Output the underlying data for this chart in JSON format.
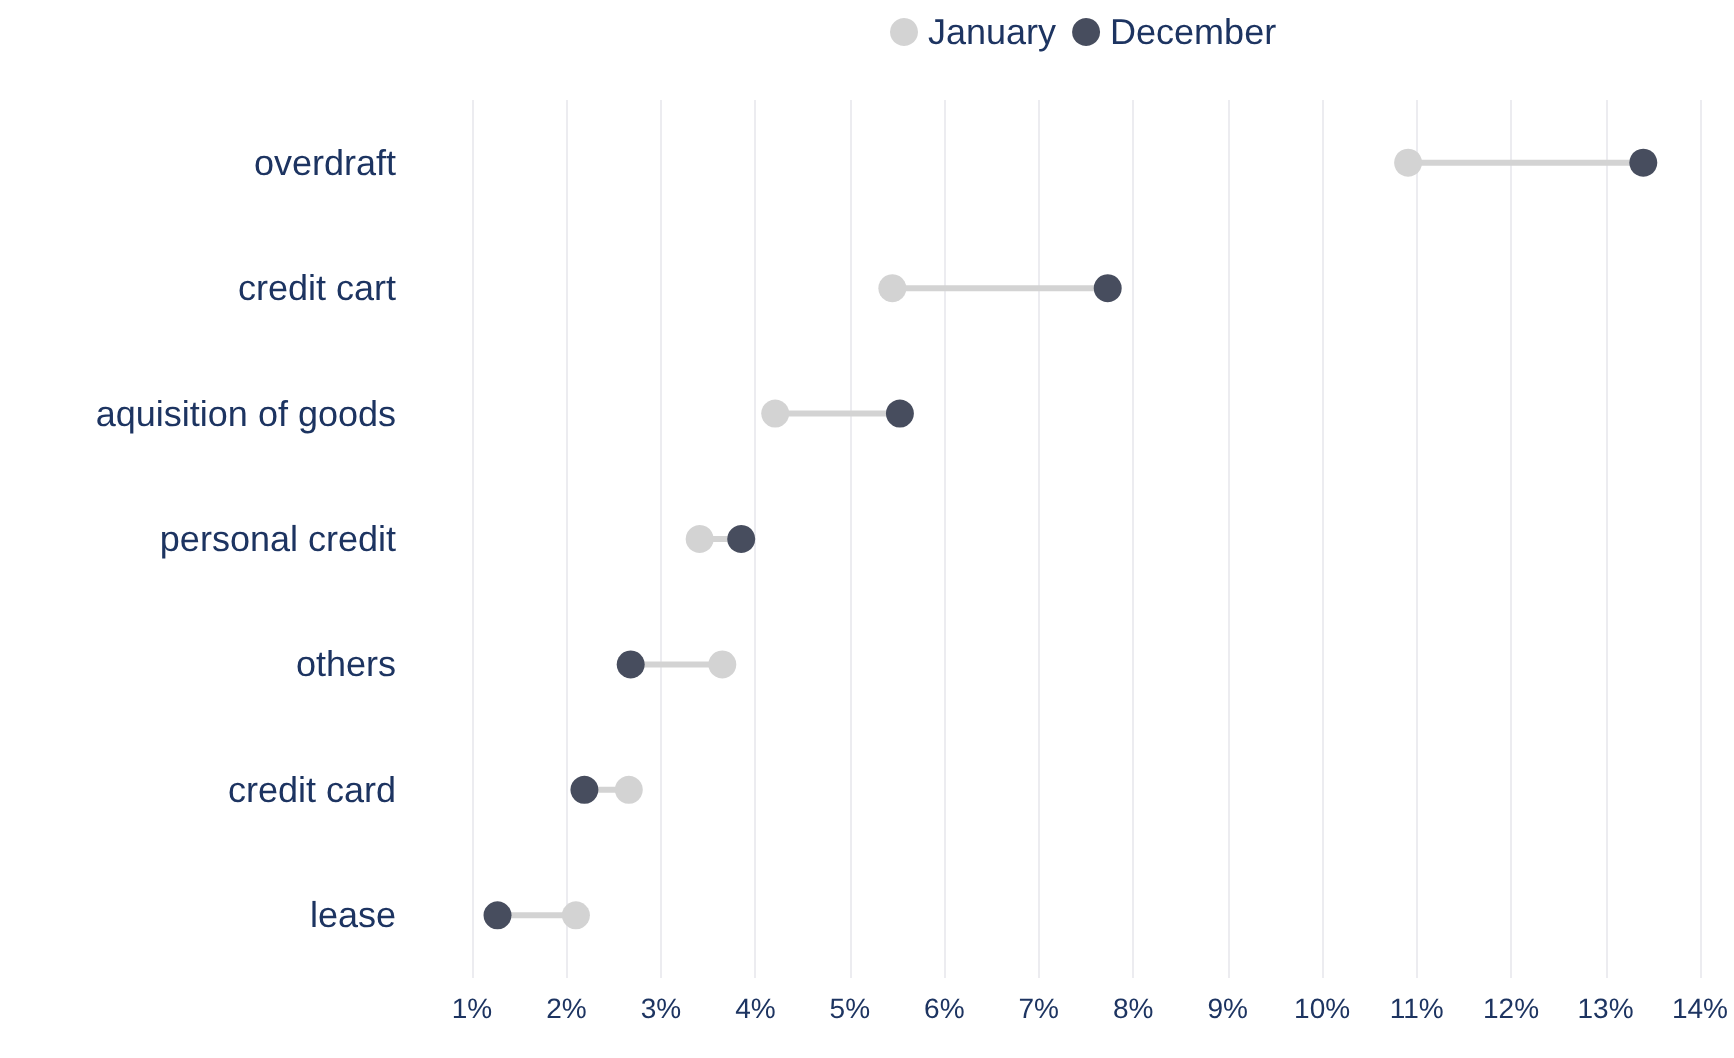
{
  "chart_data": {
    "type": "scatter",
    "orientation": "horizontal",
    "categories": [
      "overdraft",
      "credit cart",
      "aquisition of goods",
      "personal credit",
      "others",
      "credit card",
      "lease"
    ],
    "series": [
      {
        "name": "January",
        "color": "#d3d3d3",
        "values": [
          10.91,
          5.45,
          4.21,
          3.41,
          3.65,
          2.66,
          2.1
        ]
      },
      {
        "name": "December",
        "color": "#474d5e",
        "values": [
          13.4,
          7.73,
          5.53,
          3.85,
          2.68,
          2.19,
          1.27
        ]
      }
    ],
    "xlim": [
      1,
      14
    ],
    "xticks": [
      {
        "value": 1,
        "label": "1%"
      },
      {
        "value": 2,
        "label": "2%"
      },
      {
        "value": 3,
        "label": "3%"
      },
      {
        "value": 4,
        "label": "4%"
      },
      {
        "value": 5,
        "label": "5%"
      },
      {
        "value": 6,
        "label": "6%"
      },
      {
        "value": 7,
        "label": "7%"
      },
      {
        "value": 8,
        "label": "8%"
      },
      {
        "value": 9,
        "label": "9%"
      },
      {
        "value": 10,
        "label": "10%"
      },
      {
        "value": 11,
        "label": "11%"
      },
      {
        "value": 12,
        "label": "12%"
      },
      {
        "value": 13,
        "label": "13%"
      },
      {
        "value": 14,
        "label": "14%"
      }
    ],
    "grid": "x",
    "legend": "top",
    "marker": "circle"
  }
}
